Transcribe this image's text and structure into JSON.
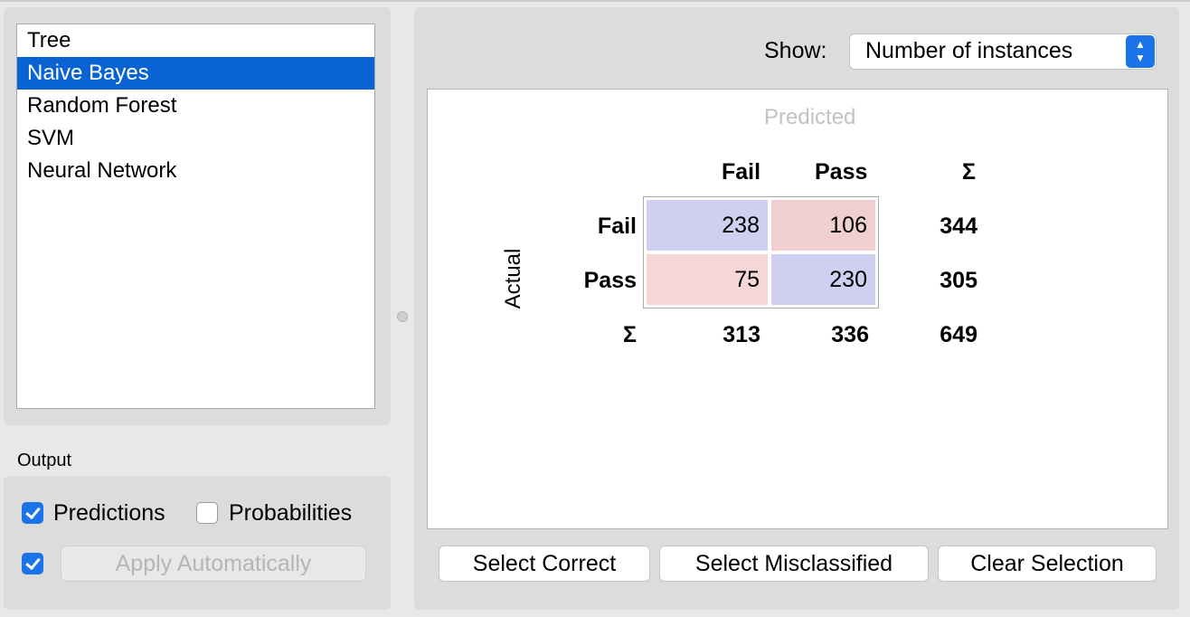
{
  "models": {
    "items": [
      "Tree",
      "Naive Bayes",
      "Random Forest",
      "SVM",
      "Neural Network"
    ],
    "selected": "Naive Bayes"
  },
  "output": {
    "label": "Output",
    "predictions_label": "Predictions",
    "predictions_checked": true,
    "probabilities_label": "Probabilities",
    "probabilities_checked": false,
    "auto_checked": true,
    "apply_label": "Apply Automatically"
  },
  "show": {
    "label": "Show:",
    "value": "Number of instances"
  },
  "matrix": {
    "predicted_label": "Predicted",
    "actual_label": "Actual",
    "classes": [
      "Fail",
      "Pass"
    ],
    "sum_symbol": "Σ",
    "cells": [
      [
        "238",
        "106"
      ],
      [
        "75",
        "230"
      ]
    ],
    "row_sums": [
      "344",
      "305"
    ],
    "col_sums": [
      "313",
      "336"
    ],
    "total": "649"
  },
  "buttons": {
    "select_correct": "Select Correct",
    "select_misclassified": "Select Misclassified",
    "clear_selection": "Clear Selection"
  },
  "colors": {
    "selection": "#0a63d3",
    "correct_cell": "#cfcff2",
    "misclassified_cell": "#f2cfcf"
  }
}
